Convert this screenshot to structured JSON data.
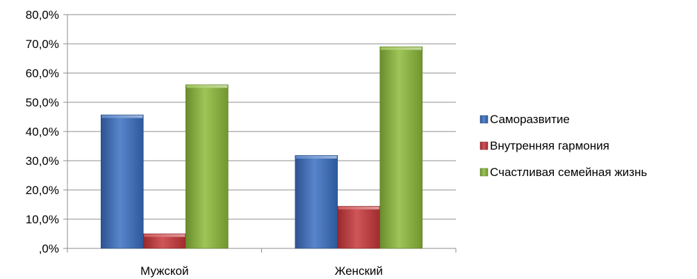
{
  "chart_data": {
    "type": "bar",
    "categories": [
      "Мужской",
      "Женский"
    ],
    "series": [
      {
        "name": "Саморазвитие",
        "values": [
          45.7,
          31.8
        ],
        "color": "#3A6FC2"
      },
      {
        "name": "Внутренняя гармония",
        "values": [
          5.0,
          14.4
        ],
        "color": "#C8373A"
      },
      {
        "name": "Счастливая семейная жизнь",
        "values": [
          56.0,
          69.0
        ],
        "color": "#8DBB3A"
      }
    ],
    "ylim": [
      0,
      80
    ],
    "ytick_step": 10,
    "ytick_labels": [
      ",0%",
      "10,0%",
      "20,0%",
      "30,0%",
      "40,0%",
      "50,0%",
      "60,0%",
      "70,0%",
      "80,0%"
    ],
    "title": "",
    "xlabel": "",
    "ylabel": "",
    "grid": true,
    "legend": "right"
  }
}
